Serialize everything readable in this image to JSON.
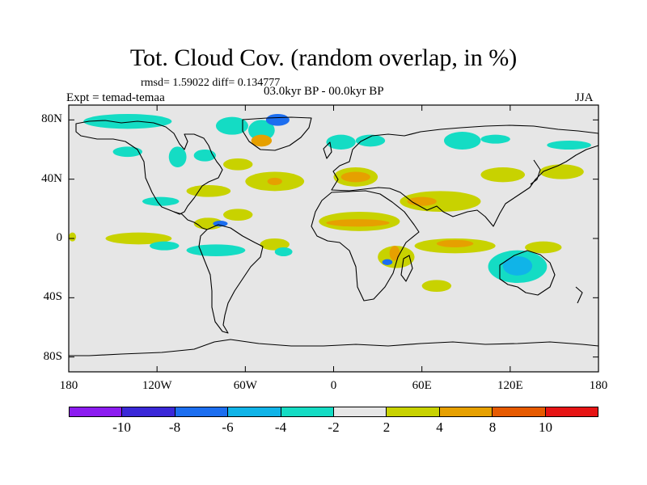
{
  "title": "Tot. Cloud Cov. (random overlap, in %)",
  "stats": "rmsd= 1.59022 diff= 0.134777",
  "period": "03.0kyr BP - 00.0kyr BP",
  "experiment": "Expt = temad-temaa",
  "season": "JJA",
  "map": {
    "projection": "cylindrical-equidistant",
    "lon_range": [
      -180,
      180
    ],
    "lat_range": [
      -90,
      90
    ],
    "background_color": "#e6e6e6",
    "lat_ticks": [
      {
        "value": 80,
        "label": "80N"
      },
      {
        "value": 40,
        "label": "40N"
      },
      {
        "value": 0,
        "label": "0"
      },
      {
        "value": -40,
        "label": "40S"
      },
      {
        "value": -80,
        "label": "80S"
      }
    ],
    "lon_ticks": [
      {
        "value": -180,
        "label": "180"
      },
      {
        "value": -120,
        "label": "120W"
      },
      {
        "value": -60,
        "label": "60W"
      },
      {
        "value": 0,
        "label": "0"
      },
      {
        "value": 60,
        "label": "60E"
      },
      {
        "value": 120,
        "label": "120E"
      },
      {
        "value": 180,
        "label": "180"
      }
    ]
  },
  "colorbar": {
    "colors": [
      "#8c1cf0",
      "#3a28d8",
      "#1c6ef0",
      "#10b4e8",
      "#14dcc4",
      "#e6e6e6",
      "#c8d200",
      "#e6a000",
      "#e65a00",
      "#e61414"
    ],
    "labels": [
      "-10",
      "-8",
      "-6",
      "-4",
      "-2",
      "2",
      "4",
      "8",
      "10"
    ]
  },
  "anomalies": [
    {
      "lon": [
        -170,
        -110
      ],
      "lat": [
        74,
        84
      ],
      "value": -3
    },
    {
      "lon": [
        -150,
        -130
      ],
      "lat": [
        55,
        62
      ],
      "value": -3
    },
    {
      "lon": [
        -112,
        -100
      ],
      "lat": [
        48,
        62
      ],
      "value": -3
    },
    {
      "lon": [
        -95,
        -80
      ],
      "lat": [
        52,
        60
      ],
      "value": -3
    },
    {
      "lon": [
        -80,
        -58
      ],
      "lat": [
        70,
        82
      ],
      "value": -3
    },
    {
      "lon": [
        -58,
        -40
      ],
      "lat": [
        66,
        80
      ],
      "value": -3
    },
    {
      "lon": [
        -46,
        -30
      ],
      "lat": [
        76,
        84
      ],
      "value": -6
    },
    {
      "lon": [
        -56,
        -42
      ],
      "lat": [
        62,
        70
      ],
      "value": 5
    },
    {
      "lon": [
        -75,
        -55
      ],
      "lat": [
        46,
        54
      ],
      "value": 3
    },
    {
      "lon": [
        -60,
        -20
      ],
      "lat": [
        32,
        45
      ],
      "value": 3
    },
    {
      "lon": [
        -45,
        -35
      ],
      "lat": [
        36,
        41
      ],
      "value": 5
    },
    {
      "lon": [
        -100,
        -70
      ],
      "lat": [
        28,
        36
      ],
      "value": 3
    },
    {
      "lon": [
        -130,
        -105
      ],
      "lat": [
        22,
        28
      ],
      "value": -3
    },
    {
      "lon": [
        -155,
        -110
      ],
      "lat": [
        -4,
        4
      ],
      "value": 3
    },
    {
      "lon": [
        -125,
        -105
      ],
      "lat": [
        -8,
        -2
      ],
      "value": -3
    },
    {
      "lon": [
        -95,
        -75
      ],
      "lat": [
        6,
        14
      ],
      "value": 3
    },
    {
      "lon": [
        -82,
        -72
      ],
      "lat": [
        8,
        12
      ],
      "value": -6
    },
    {
      "lon": [
        -75,
        -55
      ],
      "lat": [
        12,
        20
      ],
      "value": 3
    },
    {
      "lon": [
        -50,
        -30
      ],
      "lat": [
        -8,
        0
      ],
      "value": 3
    },
    {
      "lon": [
        -40,
        -28
      ],
      "lat": [
        -12,
        -6
      ],
      "value": -3
    },
    {
      "lon": [
        -180,
        -175
      ],
      "lat": [
        -2,
        4
      ],
      "value": 3
    },
    {
      "lon": [
        -10,
        45
      ],
      "lat": [
        5,
        18
      ],
      "value": 3
    },
    {
      "lon": [
        -5,
        38
      ],
      "lat": [
        8,
        13
      ],
      "value": 5
    },
    {
      "lon": [
        0,
        30
      ],
      "lat": [
        35,
        48
      ],
      "value": 3
    },
    {
      "lon": [
        5,
        25
      ],
      "lat": [
        38,
        45
      ],
      "value": 5
    },
    {
      "lon": [
        -5,
        15
      ],
      "lat": [
        60,
        70
      ],
      "value": -3
    },
    {
      "lon": [
        15,
        35
      ],
      "lat": [
        62,
        70
      ],
      "value": -3
    },
    {
      "lon": [
        75,
        100
      ],
      "lat": [
        60,
        72
      ],
      "value": -3
    },
    {
      "lon": [
        100,
        120
      ],
      "lat": [
        64,
        70
      ],
      "value": -3
    },
    {
      "lon": [
        145,
        175
      ],
      "lat": [
        60,
        66
      ],
      "value": -3
    },
    {
      "lon": [
        140,
        170
      ],
      "lat": [
        40,
        50
      ],
      "value": 3
    },
    {
      "lon": [
        100,
        130
      ],
      "lat": [
        38,
        48
      ],
      "value": 3
    },
    {
      "lon": [
        45,
        100
      ],
      "lat": [
        18,
        32
      ],
      "value": 3
    },
    {
      "lon": [
        50,
        70
      ],
      "lat": [
        22,
        28
      ],
      "value": 5
    },
    {
      "lon": [
        55,
        110
      ],
      "lat": [
        -10,
        0
      ],
      "value": 3
    },
    {
      "lon": [
        70,
        95
      ],
      "lat": [
        -6,
        -1
      ],
      "value": 5
    },
    {
      "lon": [
        105,
        145
      ],
      "lat": [
        -30,
        -8
      ],
      "value": -3
    },
    {
      "lon": [
        115,
        135
      ],
      "lat": [
        -25,
        -12
      ],
      "value": -5
    },
    {
      "lon": [
        30,
        55
      ],
      "lat": [
        -20,
        -5
      ],
      "value": 3
    },
    {
      "lon": [
        38,
        45
      ],
      "lat": [
        -15,
        -5
      ],
      "value": 5
    },
    {
      "lon": [
        33,
        40
      ],
      "lat": [
        -18,
        -14
      ],
      "value": -6
    },
    {
      "lon": [
        -100,
        -60
      ],
      "lat": [
        -12,
        -4
      ],
      "value": -3
    },
    {
      "lon": [
        60,
        80
      ],
      "lat": [
        -36,
        -28
      ],
      "value": 3
    },
    {
      "lon": [
        130,
        155
      ],
      "lat": [
        -10,
        -2
      ],
      "value": 3
    }
  ]
}
